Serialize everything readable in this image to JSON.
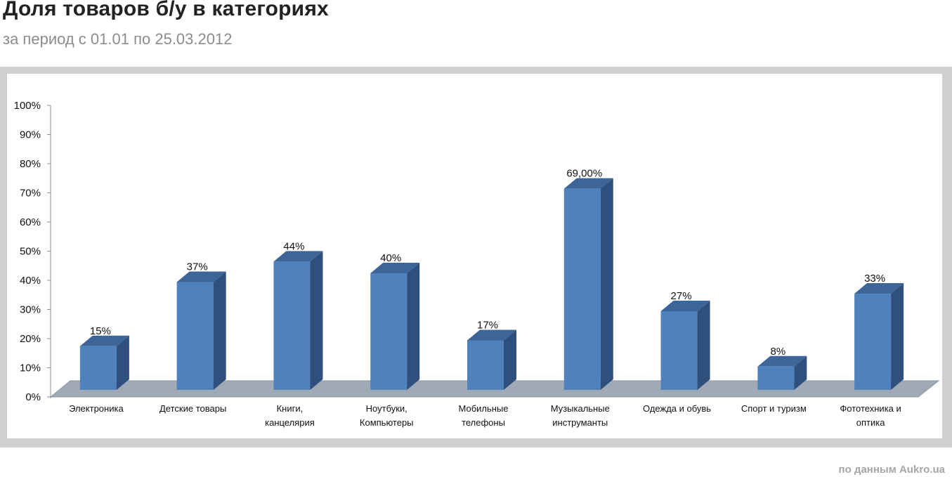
{
  "header": {
    "title": "Доля товаров  б/у в категориях",
    "subtitle": "за период с 01.01 по 25.03.2012"
  },
  "footer": {
    "source": "по данным Aukro.ua"
  },
  "colors": {
    "bar_front": "#4f81bd",
    "bar_side": "#2f4f7d",
    "bar_top": "#3d6597",
    "floor": "#a0aab6",
    "frame": "#cfcfcf"
  },
  "chart_data": {
    "type": "bar",
    "three_d": true,
    "categories": [
      [
        "Электроника"
      ],
      [
        "Детские товары"
      ],
      [
        "Книги,",
        "канцелярия"
      ],
      [
        "Ноутбуки,",
        "Компьютеры"
      ],
      [
        "Мобильные",
        "телефоны"
      ],
      [
        "Музыкальные",
        "инструманты"
      ],
      [
        "Одежда и обувь"
      ],
      [
        "Спорт и туризм"
      ],
      [
        "Фототехника и",
        "оптика"
      ]
    ],
    "values": [
      15,
      37,
      44,
      40,
      17,
      69,
      27,
      8,
      33
    ],
    "data_labels": [
      "15%",
      "37%",
      "44%",
      "40%",
      "17%",
      "69,00%",
      "27%",
      "8%",
      "33%"
    ],
    "y_ticks": [
      "0%",
      "10%",
      "20%",
      "30%",
      "40%",
      "50%",
      "60%",
      "70%",
      "80%",
      "90%",
      "100%"
    ],
    "ylim": [
      0,
      100
    ],
    "grid": false,
    "legend": "none"
  }
}
